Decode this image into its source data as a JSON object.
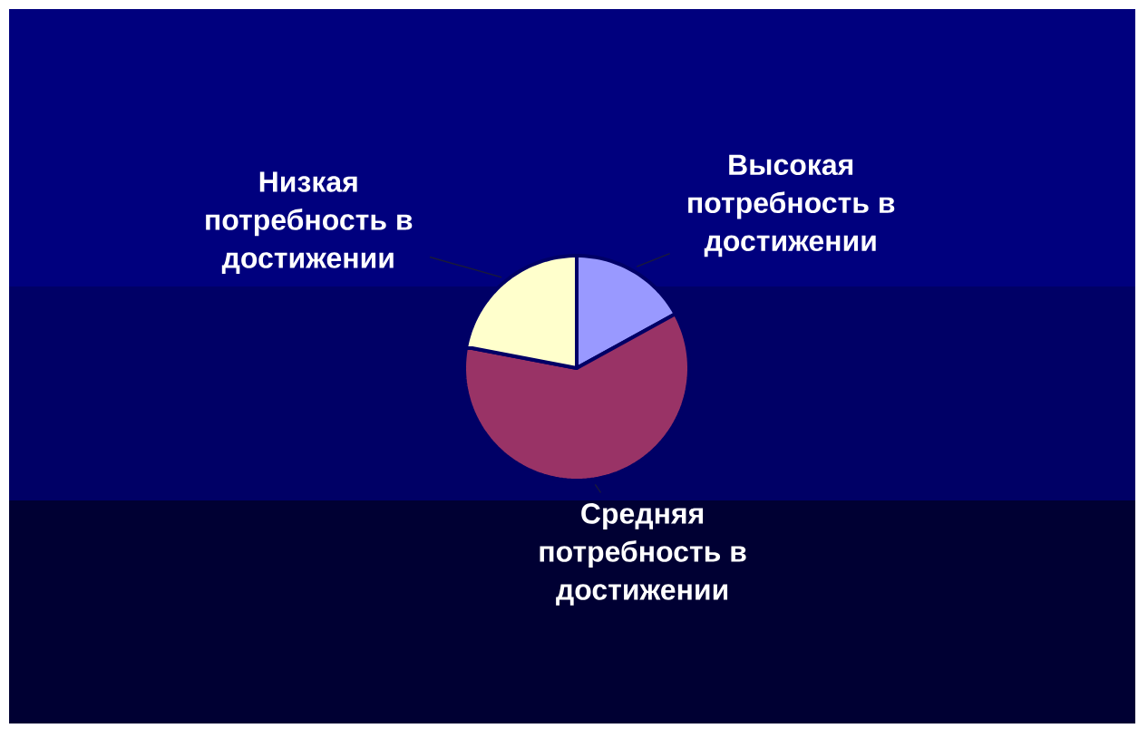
{
  "chart_data": {
    "type": "pie",
    "categories": [
      "Высокая потребность в достижении",
      "Средняя потребность в достижении",
      "Низкая потребность в достижении"
    ],
    "values": [
      17,
      61,
      22
    ],
    "colors": [
      "#9999ff",
      "#993366",
      "#ffffcc"
    ]
  }
}
